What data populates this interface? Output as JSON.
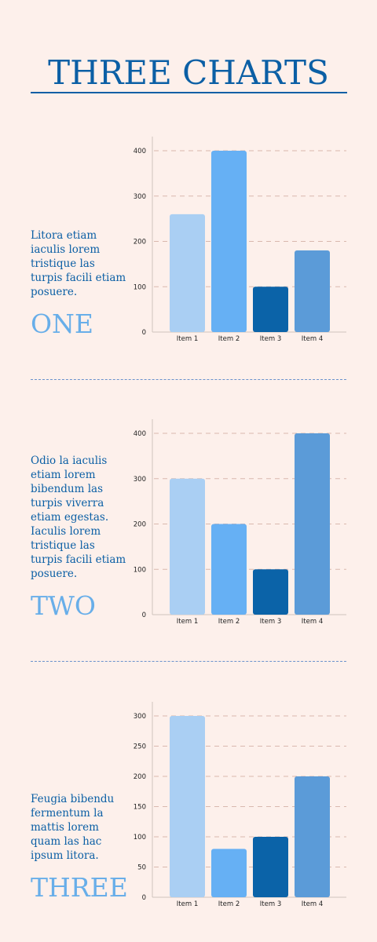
{
  "header": {
    "title": "THREE CHARTS"
  },
  "sections": [
    {
      "text": "Litora etiam iaculis lorem tristique las turpis facili etiam posuere.",
      "label": "ONE"
    },
    {
      "text": "Odio la iaculis etiam lorem bibendum las turpis viverra etiam egestas. Iaculis lorem tristique las turpis facili etiam posuere.",
      "label": "TWO"
    },
    {
      "text": "Feugia bibendu fermentum la mattis lorem quam las hac ipsum litora.",
      "label": "THREE"
    }
  ],
  "chart_data": [
    {
      "type": "bar",
      "categories": [
        "Item 1",
        "Item 2",
        "Item 3",
        "Item 4"
      ],
      "values": [
        260,
        400,
        100,
        180
      ],
      "ylim": [
        0,
        400
      ],
      "yticks": [
        0,
        100,
        200,
        300,
        400
      ],
      "grid": true,
      "colors": [
        "#aacff3",
        "#66b0f4",
        "#0b63a8",
        "#5b9bd8"
      ]
    },
    {
      "type": "bar",
      "categories": [
        "Item 1",
        "Item 2",
        "Item 3",
        "Item 4"
      ],
      "values": [
        300,
        200,
        100,
        400
      ],
      "ylim": [
        0,
        400
      ],
      "yticks": [
        0,
        100,
        200,
        300,
        400
      ],
      "grid": true,
      "colors": [
        "#aacff3",
        "#66b0f4",
        "#0b63a8",
        "#5b9bd8"
      ]
    },
    {
      "type": "bar",
      "categories": [
        "Item 1",
        "Item 2",
        "Item 3",
        "Item 4"
      ],
      "values": [
        300,
        80,
        100,
        200
      ],
      "ylim": [
        0,
        300
      ],
      "yticks": [
        0,
        50,
        100,
        150,
        200,
        250,
        300
      ],
      "grid": true,
      "colors": [
        "#aacff3",
        "#66b0f4",
        "#0b63a8",
        "#5b9bd8"
      ]
    }
  ]
}
